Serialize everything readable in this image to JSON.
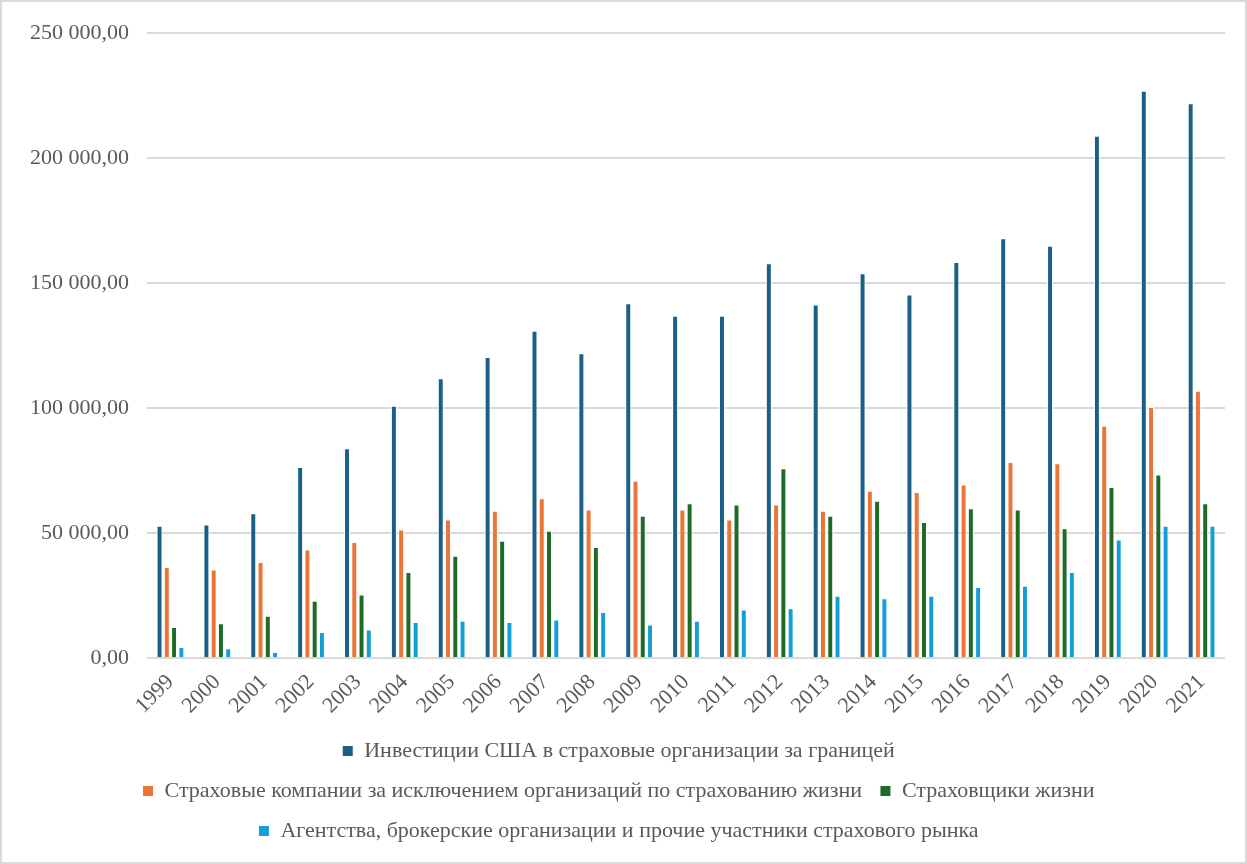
{
  "chart_data": {
    "type": "bar",
    "categories": [
      "1999",
      "2000",
      "2001",
      "2002",
      "2003",
      "2004",
      "2005",
      "2006",
      "2007",
      "2008",
      "2009",
      "2010",
      "2011",
      "2012",
      "2013",
      "2014",
      "2015",
      "2016",
      "2017",
      "2018",
      "2019",
      "2020",
      "2021"
    ],
    "series": [
      {
        "name": "Инвестиции США в страховые организации за границей",
        "color": "#1a5f85",
        "values": [
          53000,
          53500,
          58000,
          76500,
          84000,
          101000,
          112000,
          120500,
          131000,
          122000,
          142000,
          137000,
          137000,
          158000,
          141500,
          154000,
          145500,
          158500,
          168000,
          165000,
          209000,
          227000,
          222000
        ]
      },
      {
        "name": "Страховые компании за исключением организаций по страхованию жизни",
        "color": "#eb7436",
        "values": [
          36500,
          35500,
          38500,
          43500,
          46500,
          51500,
          55500,
          59000,
          64000,
          59500,
          71000,
          59500,
          55500,
          61500,
          59000,
          67000,
          66500,
          69500,
          78500,
          78000,
          93000,
          100500,
          107000
        ]
      },
      {
        "name": "Страховщики жизни",
        "color": "#1c6b27",
        "values": [
          12500,
          14000,
          17000,
          23000,
          25500,
          34500,
          41000,
          47000,
          51000,
          44500,
          57000,
          62000,
          61500,
          76000,
          57000,
          63000,
          54500,
          60000,
          59500,
          52000,
          68500,
          73500,
          62000
        ]
      },
      {
        "name": "Агентства, брокерские организации и прочие участники страхового рынка",
        "color": "#129fd8",
        "values": [
          4500,
          4000,
          2500,
          10500,
          11500,
          14500,
          15000,
          14500,
          15500,
          18500,
          13500,
          15000,
          19500,
          20000,
          25000,
          24000,
          25000,
          28500,
          29000,
          34500,
          47500,
          53000,
          53000
        ]
      }
    ],
    "ylim": [
      0,
      250000
    ],
    "yticks": [
      {
        "value": 0,
        "label": "0,00"
      },
      {
        "value": 50000,
        "label": "50 000,00"
      },
      {
        "value": 100000,
        "label": "100 000,00"
      },
      {
        "value": 150000,
        "label": "150 000,00"
      },
      {
        "value": 200000,
        "label": "200 000,00"
      },
      {
        "value": 250000,
        "label": "250 000,00"
      }
    ],
    "grid": "y",
    "legend": "bottom"
  }
}
